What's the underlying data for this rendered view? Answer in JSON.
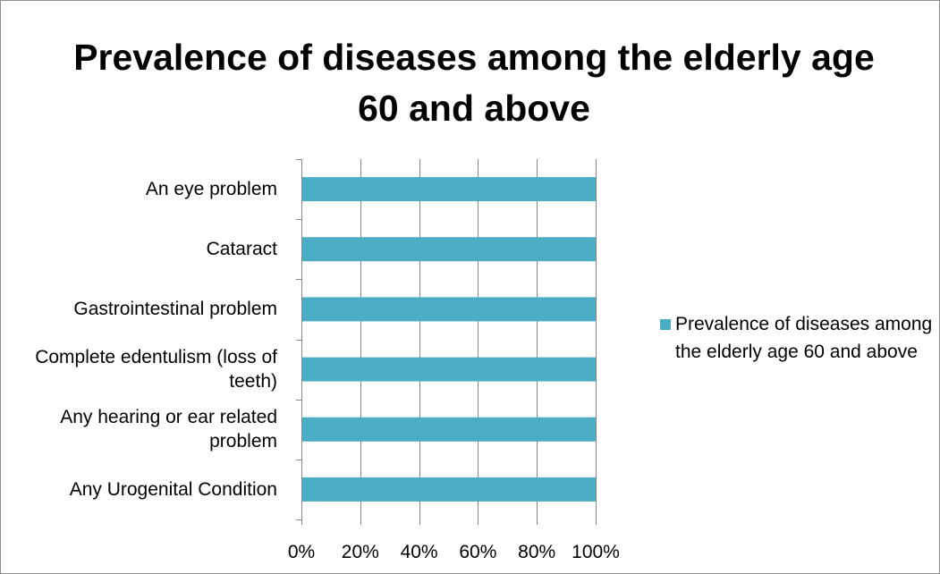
{
  "chart_data": {
    "type": "bar",
    "orientation": "horizontal",
    "stacked": "percent",
    "title": "Prevalence of diseases among the elderly age 60 and above",
    "categories": [
      "An eye problem",
      "Cataract",
      "Gastrointestinal problem",
      "Complete edentulism (loss of teeth)",
      "Any hearing or ear related problem",
      "Any Urogenital Condition"
    ],
    "series": [
      {
        "name": "Prevalence of diseases among the elderly age 60 and above",
        "values": [
          100,
          100,
          100,
          100,
          100,
          100
        ],
        "color": "#4bacc6"
      }
    ],
    "x_ticks": [
      "0%",
      "20%",
      "40%",
      "60%",
      "80%",
      "100%"
    ],
    "xlim": [
      0,
      100
    ],
    "grid": true,
    "legend": "right"
  }
}
